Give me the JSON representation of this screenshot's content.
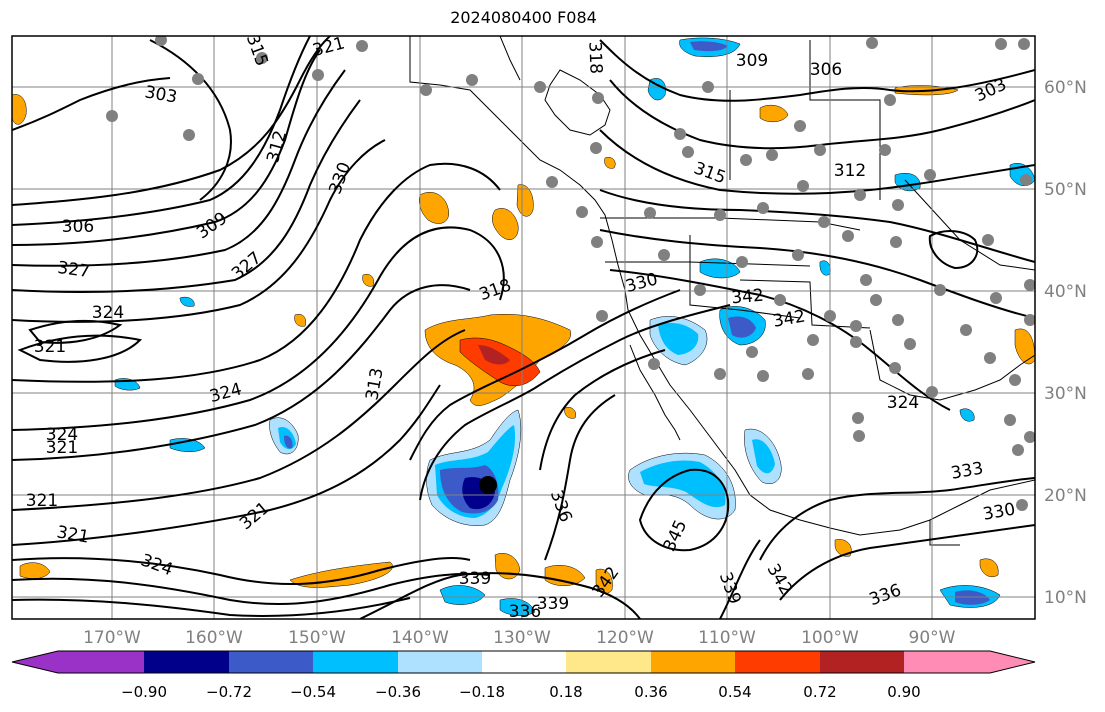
{
  "map": {
    "title": "2024080400 F084",
    "lon_ticks": [
      "170°W",
      "160°W",
      "150°W",
      "140°W",
      "130°W",
      "120°W",
      "110°W",
      "100°W",
      "90°W"
    ],
    "lat_ticks": [
      "60°N",
      "50°N",
      "40°N",
      "30°N",
      "20°N",
      "10°N"
    ],
    "contour_labels": [
      "315",
      "321",
      "318",
      "309",
      "306",
      "303",
      "303",
      "312",
      "315",
      "312",
      "330",
      "309",
      "306",
      "327",
      "327",
      "324",
      "321",
      "324",
      "324",
      "321",
      "321",
      "321",
      "324",
      "318",
      "313",
      "330",
      "342",
      "342",
      "336",
      "345",
      "339",
      "339",
      "342",
      "336",
      "333",
      "330",
      "336",
      "339",
      "342",
      "324",
      "321"
    ],
    "colorbar": {
      "labels": [
        "−0.90",
        "−0.72",
        "−0.54",
        "−0.36",
        "−0.18",
        "0.18",
        "0.36",
        "0.54",
        "0.72",
        "0.90"
      ],
      "colors": [
        "#9b32c8",
        "#00008b",
        "#3c5ac8",
        "#00bfff",
        "#aee0ff",
        "#ffffff",
        "#ffe88a",
        "#ffa500",
        "#ff3c00",
        "#b22222",
        "#ff8cb4"
      ]
    }
  }
}
